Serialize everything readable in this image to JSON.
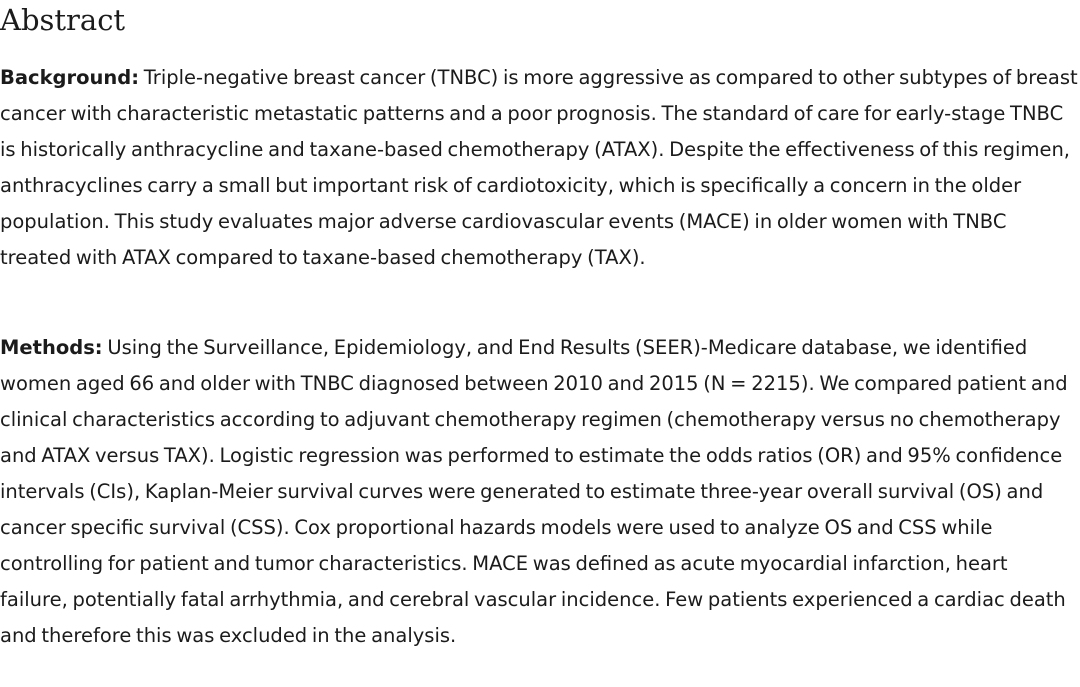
{
  "abstract": {
    "heading": "Abstract",
    "background": {
      "label": "Background:",
      "text": "Triple-negative breast cancer (TNBC) is more aggressive as compared to other subtypes of breast cancer with characteristic metastatic patterns and a poor prognosis. The standard of care for early-stage TNBC is historically anthracycline and taxane-based chemotherapy (ATAX). Despite the effectiveness of this regimen, anthracyclines carry a small but important risk of cardiotoxicity, which is specifically a concern in the older population. This study evaluates major adverse cardiovascular events (MACE) in older women with TNBC treated with ATAX compared to taxane-based chemotherapy (TAX)."
    },
    "methods": {
      "label": "Methods:",
      "text": "Using the Surveillance, Epidemiology, and End Results (SEER)-Medicare database, we identified women aged 66 and older with TNBC diagnosed between 2010 and 2015 (N = 2215). We compared patient and clinical characteristics according to adjuvant chemotherapy regimen (chemotherapy versus no chemotherapy and ATAX versus TAX). Logistic regression was performed to estimate the odds ratios (OR) and 95% confidence intervals (CIs), Kaplan-Meier survival curves were generated to estimate three-year overall survival (OS) and cancer specific survival (CSS). Cox proportional hazards models were used to analyze OS and CSS while controlling for patient and tumor characteristics. MACE was defined as acute myocardial infarction, heart failure, potentially fatal arrhythmia, and cerebral vascular incidence. Few patients experienced a cardiac death and therefore this was excluded in the analysis."
    }
  }
}
